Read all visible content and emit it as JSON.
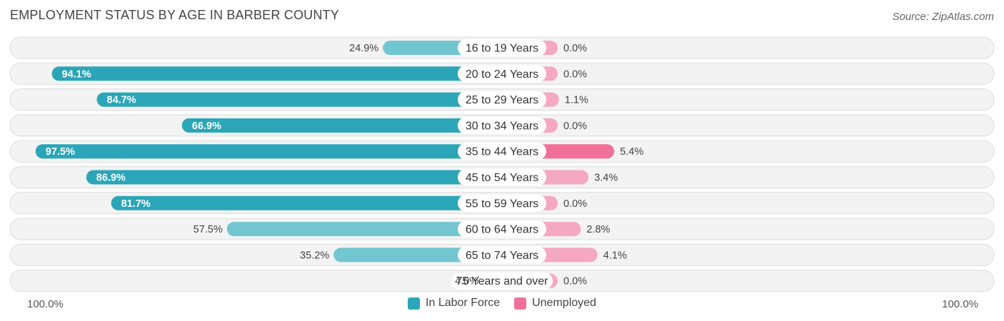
{
  "title": "EMPLOYMENT STATUS BY AGE IN BARBER COUNTY",
  "source": "Source: ZipAtlas.com",
  "colors": {
    "labor_strong": "#2ba6b8",
    "labor_light": "#72c6cf",
    "unemployed_strong": "#f07099",
    "unemployed_light": "#f5a8c2"
  },
  "chart_data": {
    "type": "bar",
    "orientation": "horizontal-diverging",
    "categories": [
      "16 to 19 Years",
      "20 to 24 Years",
      "25 to 29 Years",
      "30 to 34 Years",
      "35 to 44 Years",
      "45 to 54 Years",
      "55 to 59 Years",
      "60 to 64 Years",
      "65 to 74 Years",
      "75 Years and over"
    ],
    "series": [
      {
        "name": "In Labor Force",
        "values": [
          24.9,
          94.1,
          84.7,
          66.9,
          97.5,
          86.9,
          81.7,
          57.5,
          35.2,
          4.0
        ],
        "labels": [
          "24.9%",
          "94.1%",
          "84.7%",
          "66.9%",
          "97.5%",
          "86.9%",
          "81.7%",
          "57.5%",
          "35.2%",
          "4.0%"
        ]
      },
      {
        "name": "Unemployed",
        "values": [
          0.0,
          0.0,
          1.1,
          0.0,
          5.4,
          3.4,
          0.0,
          2.8,
          4.1,
          0.0
        ],
        "labels": [
          "0.0%",
          "0.0%",
          "1.1%",
          "0.0%",
          "5.4%",
          "3.4%",
          "0.0%",
          "2.8%",
          "4.1%",
          "0.0%"
        ]
      }
    ],
    "axis_left_label": "100.0%",
    "axis_right_label": "100.0%",
    "xlim": [
      -100,
      100
    ],
    "legend_placement": "bottom-center"
  }
}
